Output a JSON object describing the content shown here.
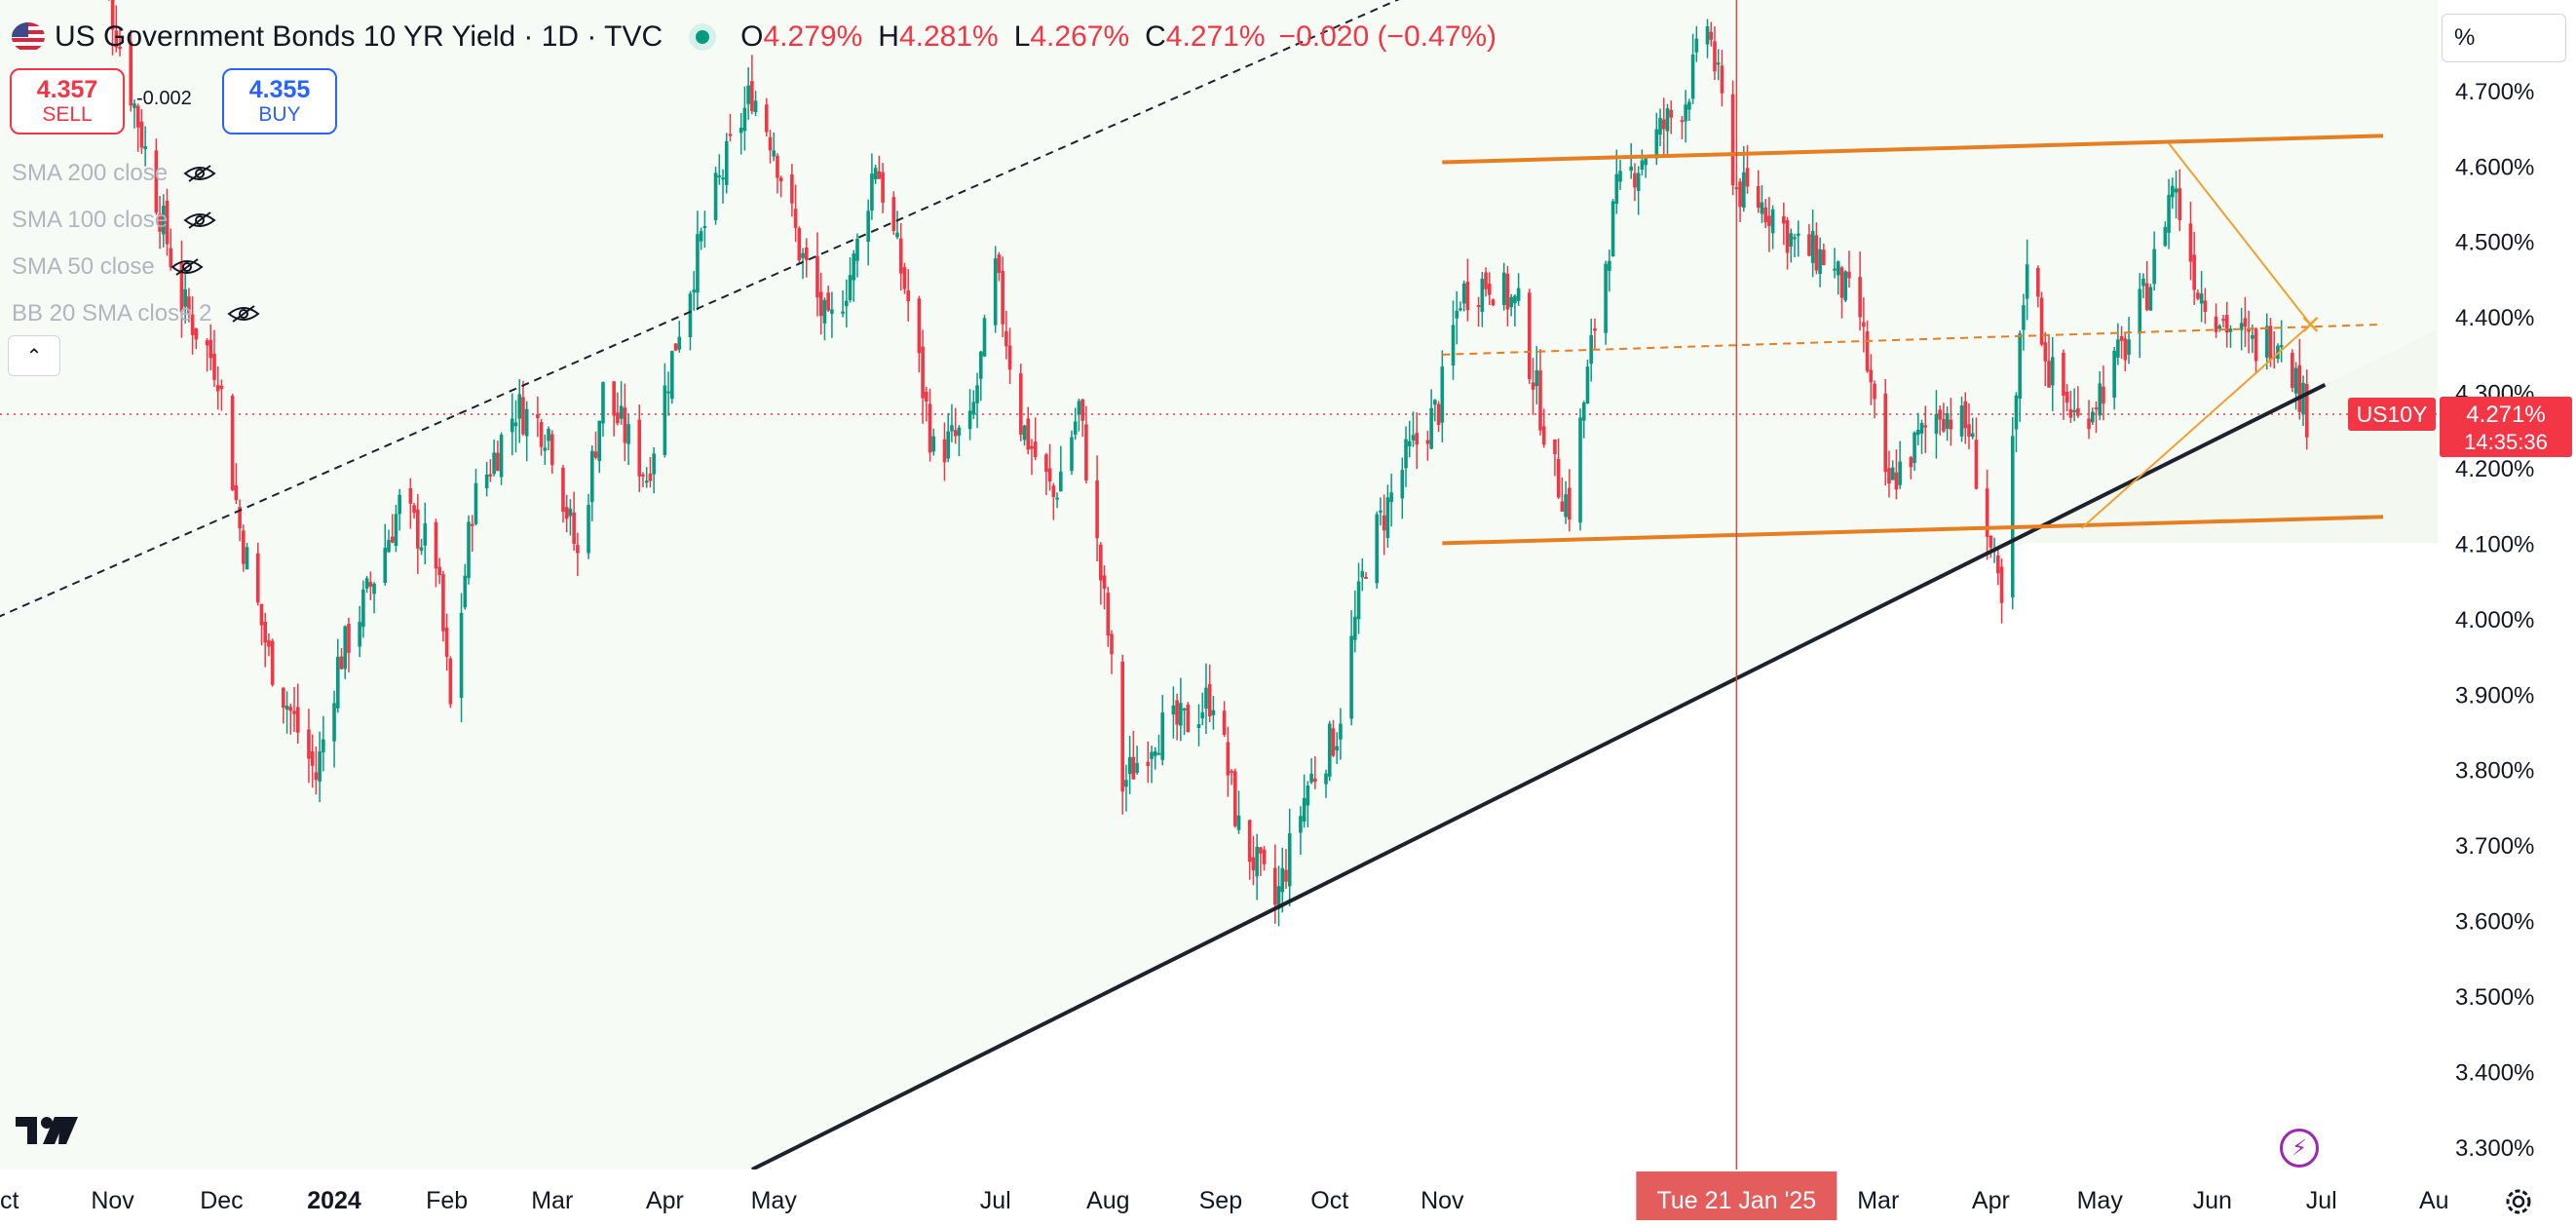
{
  "header": {
    "title": "US Government Bonds 10 YR Yield · 1D · TVC",
    "ohlc": {
      "o_key": "O",
      "o_val": "4.279%",
      "h_key": "H",
      "h_val": "4.281%",
      "l_key": "L",
      "l_val": "4.267%",
      "c_key": "C",
      "c_val": "4.271%",
      "change": "−0.020 (−0.47%)"
    }
  },
  "trade": {
    "sell_price": "4.357",
    "sell_label": "SELL",
    "buy_price": "4.355",
    "buy_label": "BUY",
    "spread": "-0.002"
  },
  "indicators": [
    "SMA 200 close",
    "SMA 100 close",
    "SMA 50 close",
    "BB 20 SMA close 2"
  ],
  "scale_mode": "%",
  "icons": {
    "flag": "us-flag-icon",
    "market": "market-open-dot-icon",
    "eye": "eye-crossed-icon",
    "collapse": "chevron-up-icon",
    "logo": "tradingview-logo-icon",
    "bolt": "lightning-icon",
    "settings": "gear-icon"
  },
  "colors": {
    "up": "#089981",
    "down": "#f23645",
    "channel": "#e67e22",
    "trend": "#1e222d",
    "shade": "#f3f9f1",
    "crosshair": "#cf4a4a"
  },
  "chart_data": {
    "type": "candlestick",
    "symbol_badge": "US10Y",
    "last_price": "4.271%",
    "countdown": "14:35:36",
    "crosshair_date_label": "Tue 21 Jan '25",
    "y_ticks": [
      "4.700%",
      "4.600%",
      "4.500%",
      "4.400%",
      "4.300%",
      "4.200%",
      "4.100%",
      "4.000%",
      "3.900%",
      "3.800%",
      "3.700%",
      "3.600%",
      "3.500%",
      "3.400%",
      "3.300%"
    ],
    "y_tick_values": [
      4.7,
      4.6,
      4.5,
      4.4,
      4.3,
      4.2,
      4.1,
      4.0,
      3.9,
      3.8,
      3.7,
      3.6,
      3.5,
      3.4,
      3.3
    ],
    "y_range": [
      3.27,
      4.82
    ],
    "x_range": [
      "2023-10-01",
      "2025-08-02"
    ],
    "x_ticks": [
      {
        "date": "2023-10-01",
        "label": "Oct"
      },
      {
        "date": "2023-11-01",
        "label": "Nov"
      },
      {
        "date": "2023-12-01",
        "label": "Dec"
      },
      {
        "date": "2024-01-01",
        "label": "2024",
        "bold": true
      },
      {
        "date": "2024-02-01",
        "label": "Feb"
      },
      {
        "date": "2024-03-01",
        "label": "Mar"
      },
      {
        "date": "2024-04-01",
        "label": "Apr"
      },
      {
        "date": "2024-05-01",
        "label": "May"
      },
      {
        "date": "2024-07-01",
        "label": "Jul"
      },
      {
        "date": "2024-08-01",
        "label": "Aug"
      },
      {
        "date": "2024-09-01",
        "label": "Sep"
      },
      {
        "date": "2024-10-01",
        "label": "Oct"
      },
      {
        "date": "2024-11-01",
        "label": "Nov"
      },
      {
        "date": "2025-03-01",
        "label": "Mar"
      },
      {
        "date": "2025-04-01",
        "label": "Apr"
      },
      {
        "date": "2025-05-01",
        "label": "May"
      },
      {
        "date": "2025-06-01",
        "label": "Jun"
      },
      {
        "date": "2025-07-01",
        "label": "Jul"
      },
      {
        "date": "2025-08-01",
        "label": "Au"
      }
    ],
    "closes": [
      [
        "2023-10-25",
        4.98
      ],
      [
        "2023-11-01",
        4.8
      ],
      [
        "2023-11-10",
        4.62
      ],
      [
        "2023-11-20",
        4.42
      ],
      [
        "2023-11-30",
        4.33
      ],
      [
        "2023-12-06",
        4.12
      ],
      [
        "2023-12-14",
        3.95
      ],
      [
        "2023-12-27",
        3.79
      ],
      [
        "2024-01-02",
        3.94
      ],
      [
        "2024-01-10",
        4.03
      ],
      [
        "2024-01-19",
        4.15
      ],
      [
        "2024-01-29",
        4.08
      ],
      [
        "2024-02-02",
        3.88
      ],
      [
        "2024-02-08",
        4.15
      ],
      [
        "2024-02-20",
        4.28
      ],
      [
        "2024-02-29",
        4.25
      ],
      [
        "2024-03-08",
        4.08
      ],
      [
        "2024-03-15",
        4.3
      ],
      [
        "2024-03-27",
        4.19
      ],
      [
        "2024-04-05",
        4.39
      ],
      [
        "2024-04-12",
        4.52
      ],
      [
        "2024-04-19",
        4.62
      ],
      [
        "2024-04-25",
        4.7
      ],
      [
        "2024-05-01",
        4.63
      ],
      [
        "2024-05-08",
        4.49
      ],
      [
        "2024-05-16",
        4.38
      ],
      [
        "2024-05-23",
        4.47
      ],
      [
        "2024-05-29",
        4.61
      ],
      [
        "2024-06-07",
        4.42
      ],
      [
        "2024-06-14",
        4.22
      ],
      [
        "2024-06-24",
        4.25
      ],
      [
        "2024-07-01",
        4.46
      ],
      [
        "2024-07-08",
        4.26
      ],
      [
        "2024-07-17",
        4.16
      ],
      [
        "2024-07-24",
        4.28
      ],
      [
        "2024-08-01",
        3.98
      ],
      [
        "2024-08-05",
        3.78
      ],
      [
        "2024-08-14",
        3.85
      ],
      [
        "2024-08-22",
        3.86
      ],
      [
        "2024-08-30",
        3.9
      ],
      [
        "2024-09-06",
        3.72
      ],
      [
        "2024-09-16",
        3.62
      ],
      [
        "2024-09-25",
        3.78
      ],
      [
        "2024-10-03",
        3.85
      ],
      [
        "2024-10-11",
        4.08
      ],
      [
        "2024-10-22",
        4.21
      ],
      [
        "2024-10-31",
        4.28
      ],
      [
        "2024-11-06",
        4.43
      ],
      [
        "2024-11-14",
        4.45
      ],
      [
        "2024-11-22",
        4.41
      ],
      [
        "2024-12-02",
        4.19
      ],
      [
        "2024-12-06",
        4.15
      ],
      [
        "2024-12-13",
        4.39
      ],
      [
        "2024-12-19",
        4.56
      ],
      [
        "2024-12-27",
        4.62
      ],
      [
        "2025-01-07",
        4.69
      ],
      [
        "2025-01-13",
        4.79
      ],
      [
        "2025-01-21",
        4.57
      ],
      [
        "2025-01-31",
        4.54
      ],
      [
        "2025-02-07",
        4.49
      ],
      [
        "2025-02-14",
        4.48
      ],
      [
        "2025-02-24",
        4.4
      ],
      [
        "2025-03-03",
        4.17
      ],
      [
        "2025-03-10",
        4.22
      ],
      [
        "2025-03-18",
        4.28
      ],
      [
        "2025-03-26",
        4.25
      ],
      [
        "2025-04-04",
        4.01
      ],
      [
        "2025-04-08",
        4.29
      ],
      [
        "2025-04-11",
        4.49
      ],
      [
        "2025-04-17",
        4.33
      ],
      [
        "2025-04-25",
        4.26
      ],
      [
        "2025-05-02",
        4.31
      ],
      [
        "2025-05-09",
        4.37
      ],
      [
        "2025-05-15",
        4.45
      ],
      [
        "2025-05-21",
        4.58
      ],
      [
        "2025-05-28",
        4.44
      ],
      [
        "2025-06-05",
        4.39
      ],
      [
        "2025-06-12",
        4.36
      ],
      [
        "2025-06-20",
        4.38
      ],
      [
        "2025-06-27",
        4.27
      ]
    ],
    "drawings": {
      "dashed_trend": [
        [
          "2023-09-20",
          3.98
        ],
        [
          "2024-12-01",
          4.91
        ]
      ],
      "main_trend": [
        [
          "2024-04-25",
          3.27
        ],
        [
          "2025-07-02",
          4.31
        ]
      ],
      "channel_upper": [
        [
          "2024-11-01",
          4.605
        ],
        [
          "2025-07-18",
          4.64
        ]
      ],
      "channel_lower": [
        [
          "2024-11-01",
          4.1
        ],
        [
          "2025-07-18",
          4.135
        ]
      ],
      "channel_mid": [
        [
          "2024-11-01",
          4.35
        ],
        [
          "2025-07-18",
          4.39
        ]
      ],
      "triangle_top": [
        [
          "2025-05-20",
          4.63
        ],
        [
          "2025-06-28",
          4.39
        ]
      ],
      "triangle_bottom": [
        [
          "2025-04-26",
          4.12
        ],
        [
          "2025-06-28",
          4.39
        ]
      ],
      "crosshair_date": "2025-01-21",
      "crosshair_price": 4.271
    }
  }
}
